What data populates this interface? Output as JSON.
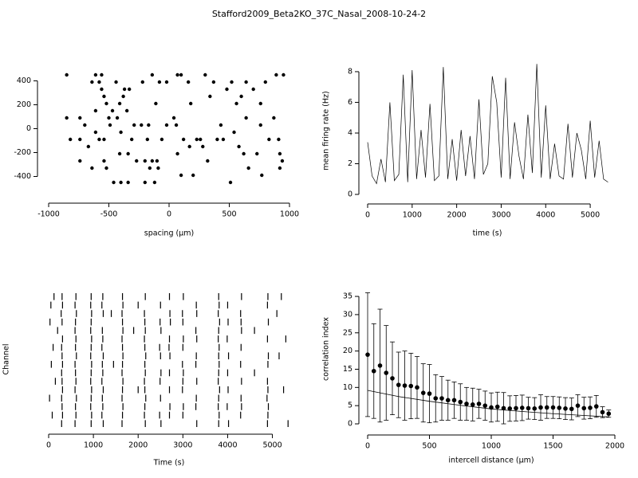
{
  "title": "Stafford2009_Beta2KO_37C_Nasal_2008-10-24-2",
  "chart_data": [
    {
      "type": "scatter",
      "x_label": "spacing (µm)",
      "x": [
        -850,
        -850,
        -820,
        -740,
        -740,
        -740,
        -700,
        -670,
        -640,
        -610,
        -640,
        -580,
        -610,
        -610,
        -580,
        -560,
        -560,
        -540,
        -540,
        -520,
        -540,
        -520,
        -500,
        -490,
        -470,
        -460,
        -440,
        -430,
        -410,
        -400,
        -400,
        -410,
        -380,
        -370,
        -350,
        -340,
        -340,
        -330,
        -310,
        -290,
        -270,
        -230,
        -220,
        -200,
        -200,
        -180,
        -170,
        -160,
        -140,
        -140,
        -120,
        -110,
        -100,
        -90,
        -80,
        -60,
        -20,
        -20,
        40,
        60,
        70,
        70,
        100,
        100,
        120,
        160,
        170,
        180,
        200,
        230,
        260,
        280,
        300,
        320,
        340,
        370,
        400,
        430,
        450,
        480,
        510,
        520,
        540,
        560,
        580,
        600,
        620,
        640,
        640,
        660,
        700,
        730,
        760,
        760,
        770,
        800,
        830,
        870,
        890,
        910,
        920,
        920,
        950,
        940
      ],
      "values": [
        450,
        90,
        -90,
        -90,
        90,
        -270,
        30,
        -150,
        -330,
        450,
        390,
        390,
        -30,
        150,
        -90,
        450,
        330,
        270,
        -90,
        210,
        -270,
        -330,
        90,
        30,
        150,
        -450,
        390,
        90,
        210,
        -30,
        -450,
        -210,
        270,
        330,
        150,
        -210,
        -450,
        330,
        -90,
        30,
        -270,
        30,
        390,
        -450,
        -270,
        -90,
        30,
        -330,
        450,
        -270,
        -450,
        210,
        -270,
        -330,
        390,
        -90,
        30,
        390,
        90,
        30,
        -210,
        450,
        450,
        -390,
        -90,
        390,
        -150,
        210,
        -390,
        -90,
        -90,
        -150,
        450,
        -270,
        270,
        390,
        -90,
        30,
        -90,
        330,
        -450,
        390,
        -30,
        210,
        -150,
        270,
        -210,
        390,
        90,
        -330,
        330,
        -210,
        210,
        30,
        -390,
        390,
        -90,
        90,
        450,
        -90,
        -210,
        -330,
        450,
        -270
      ],
      "color": "#000000",
      "xlim": [
        -1000,
        1000
      ],
      "ylim": [
        -530,
        510
      ],
      "xticks": [
        -1000,
        -500,
        0,
        500,
        1000
      ],
      "yticks": [
        -400,
        -200,
        0,
        200,
        400
      ]
    },
    {
      "type": "line",
      "x_label": "time (s)",
      "y_label": "mean firing rate (Hz)",
      "x": [
        0,
        100,
        200,
        300,
        400,
        500,
        600,
        700,
        800,
        900,
        1000,
        1100,
        1200,
        1300,
        1400,
        1500,
        1600,
        1700,
        1800,
        1900,
        2000,
        2100,
        2200,
        2300,
        2400,
        2500,
        2600,
        2700,
        2800,
        2900,
        3000,
        3100,
        3200,
        3300,
        3400,
        3500,
        3600,
        3700,
        3800,
        3900,
        4000,
        4100,
        4200,
        4300,
        4400,
        4500,
        4600,
        4700,
        4800,
        4900,
        5000,
        5100,
        5200,
        5300,
        5400
      ],
      "values": [
        3.4,
        1.2,
        0.7,
        2.3,
        0.8,
        6.0,
        0.9,
        1.3,
        7.8,
        0.8,
        8.1,
        1.0,
        4.2,
        1.1,
        5.9,
        0.9,
        1.2,
        8.3,
        1.0,
        3.6,
        0.9,
        4.2,
        1.2,
        3.8,
        1.0,
        6.2,
        1.3,
        2.0,
        7.7,
        6.0,
        1.1,
        7.6,
        1.0,
        4.7,
        2.5,
        1.0,
        5.2,
        1.4,
        8.5,
        1.1,
        5.8,
        1.0,
        3.3,
        1.2,
        1.0,
        4.6,
        1.1,
        4.0,
        2.9,
        1.0,
        4.8,
        1.1,
        3.5,
        1.0,
        0.8
      ],
      "color": "#000000",
      "xlim": [
        -100,
        5500
      ],
      "ylim": [
        -0.3,
        8.6
      ],
      "xticks": [
        0,
        1000,
        2000,
        3000,
        4000,
        5000
      ],
      "yticks": [
        0,
        2,
        4,
        6,
        8
      ]
    },
    {
      "type": "raster",
      "x_label": "Time (s)",
      "y_label": "Channel",
      "color": "#000000",
      "xlim": [
        0,
        5400
      ],
      "xticks": [
        0,
        1000,
        2000,
        3000,
        4000,
        5000
      ],
      "series": [
        {
          "values": [
            120,
            300,
            610,
            950,
            1210,
            1650,
            2160,
            2700,
            3010,
            3800,
            4310,
            4900,
            5200
          ]
        },
        {
          "values": [
            50,
            310,
            590,
            940,
            1190,
            1660,
            2000,
            2500,
            3300,
            3810,
            4000,
            4890
          ]
        },
        {
          "values": [
            280,
            620,
            960,
            1220,
            1400,
            1640,
            2140,
            2710,
            2990,
            3310,
            3790,
            4290,
            5100
          ]
        },
        {
          "values": [
            30,
            300,
            600,
            950,
            1650,
            2150,
            2490,
            2720,
            3000,
            3820,
            4010,
            4300,
            4910
          ]
        },
        {
          "values": [
            200,
            590,
            940,
            1200,
            1660,
            1900,
            2160,
            2510,
            3290,
            3800,
            4310,
            4600
          ]
        },
        {
          "values": [
            310,
            610,
            960,
            1210,
            1640,
            2140,
            2700,
            3010,
            3310,
            3790,
            3990,
            4890,
            5300
          ]
        },
        {
          "values": [
            100,
            290,
            600,
            950,
            1190,
            1650,
            2150,
            2480,
            2690,
            3000,
            3810,
            4300
          ]
        },
        {
          "values": [
            300,
            620,
            940,
            1220,
            1660,
            2170,
            2500,
            2710,
            3300,
            3800,
            4020,
            4910,
            5150
          ]
        },
        {
          "values": [
            60,
            310,
            590,
            960,
            1200,
            1450,
            1650,
            2150,
            2990,
            3290,
            3810,
            4290,
            4900
          ]
        },
        {
          "values": [
            290,
            600,
            950,
            1210,
            1640,
            2160,
            2510,
            2700,
            3010,
            3800,
            4000,
            4600
          ]
        },
        {
          "values": [
            150,
            300,
            610,
            940,
            1190,
            1660,
            2140,
            2490,
            3000,
            3310,
            3790,
            4310,
            4890
          ]
        },
        {
          "values": [
            310,
            590,
            960,
            1220,
            1650,
            2000,
            2150,
            2700,
            2990,
            3820,
            4010,
            4900,
            5250
          ]
        },
        {
          "values": [
            20,
            290,
            620,
            950,
            1200,
            1640,
            2170,
            2500,
            3300,
            3800,
            4300,
            4880
          ]
        },
        {
          "values": [
            300,
            600,
            940,
            1210,
            1660,
            2150,
            2710,
            3010,
            3290,
            3790,
            3990,
            4310,
            4910
          ]
        },
        {
          "values": [
            80,
            310,
            610,
            960,
            1190,
            1650,
            2140,
            2480,
            2700,
            3000,
            3810,
            4290,
            4900
          ]
        },
        {
          "values": [
            290,
            590,
            950,
            1220,
            1640,
            2160,
            2510,
            3310,
            3800,
            4020,
            4890,
            5350
          ]
        }
      ]
    },
    {
      "type": "errorbar",
      "x_label": "intercell distance (µm)",
      "y_label": "correlation index",
      "x": [
        0,
        50,
        100,
        150,
        200,
        250,
        300,
        350,
        400,
        450,
        500,
        550,
        600,
        650,
        700,
        750,
        800,
        850,
        900,
        950,
        1000,
        1050,
        1100,
        1150,
        1200,
        1250,
        1300,
        1350,
        1400,
        1450,
        1500,
        1550,
        1600,
        1650,
        1700,
        1750,
        1800,
        1850,
        1900,
        1950
      ],
      "values": [
        19,
        14.5,
        16,
        14,
        12.5,
        10.7,
        10.5,
        10.4,
        10,
        8.5,
        8.3,
        7,
        7,
        6.5,
        6.5,
        6,
        5.5,
        5.3,
        5.5,
        5,
        4.5,
        4.7,
        4.3,
        4.2,
        4.3,
        4.4,
        4.3,
        4.2,
        4.5,
        4.5,
        4.5,
        4.4,
        4.2,
        4.1,
        5,
        4.3,
        4.4,
        4.8,
        3.2,
        2.8
      ],
      "errors": [
        17,
        13,
        15.5,
        13,
        10,
        9,
        9.5,
        9,
        8.5,
        8,
        8,
        6.5,
        6,
        5.5,
        5,
        5,
        4.5,
        4.5,
        4,
        4,
        4,
        4,
        4.3,
        3.5,
        3.5,
        3.5,
        3,
        3,
        3.5,
        3,
        3,
        3,
        3,
        3,
        3,
        3,
        3,
        3,
        1.5,
        1
      ],
      "fit": {
        "x": [
          0,
          250,
          500,
          750,
          1000,
          1250,
          1500,
          1750,
          1950
        ],
        "values": [
          9.2,
          7.5,
          6.2,
          5.1,
          4.1,
          3.4,
          2.8,
          2.3,
          1.9
        ]
      },
      "color": "#000000",
      "xlim": [
        -40,
        2040
      ],
      "ylim": [
        -1,
        36.5
      ],
      "xticks": [
        0,
        500,
        1000,
        1500,
        2000
      ],
      "yticks": [
        0,
        5,
        10,
        15,
        20,
        25,
        30,
        35
      ]
    }
  ]
}
